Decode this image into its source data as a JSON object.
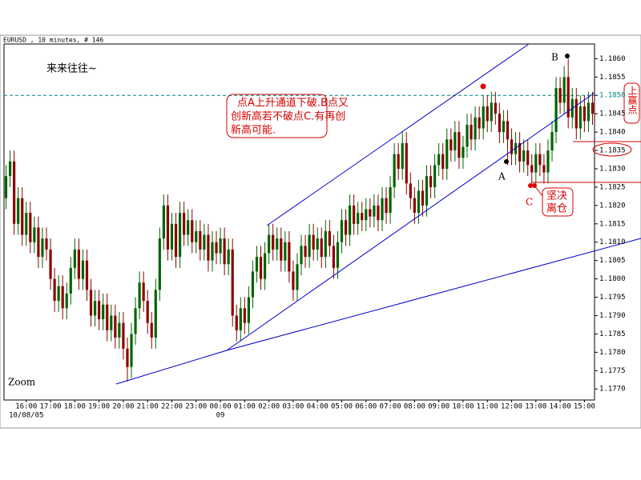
{
  "header": "EURUSD , 10 minutes, # 146",
  "chart_data": {
    "type": "candlestick",
    "title": "来来往往~",
    "up_color": "#006400",
    "down_color": "#8b0000",
    "current_price": 1.185,
    "open": [
      1.1822,
      1.1828,
      1.1832,
      1.1815,
      1.1822,
      1.1812,
      1.1818,
      1.181,
      1.1814,
      1.1806,
      1.1811,
      1.1808,
      1.18,
      1.1794,
      1.1798,
      1.1792,
      1.1796,
      1.1803,
      1.1808,
      1.18,
      1.1805,
      1.1797,
      1.179,
      1.1794,
      1.1789,
      1.1793,
      1.1786,
      1.179,
      1.1784,
      1.1788,
      1.1781,
      1.1776,
      1.1785,
      1.1792,
      1.1799,
      1.1794,
      1.1788,
      1.1784,
      1.1797,
      1.1811,
      1.182,
      1.1808,
      1.1815,
      1.1806,
      1.1818,
      1.1812,
      1.1816,
      1.181,
      1.1813,
      1.1808,
      1.1812,
      1.1805,
      1.181,
      1.1807,
      1.1811,
      1.1804,
      1.1808,
      1.179,
      1.1786,
      1.1792,
      1.1788,
      1.1795,
      1.1802,
      1.1806,
      1.18,
      1.1807,
      1.1812,
      1.1808,
      1.1811,
      1.1805,
      1.181,
      1.1802,
      1.1797,
      1.1804,
      1.1809,
      1.1806,
      1.1812,
      1.1808,
      1.1811,
      1.1806,
      1.1813,
      1.1809,
      1.1803,
      1.181,
      1.1816,
      1.1812,
      1.182,
      1.1815,
      1.1818,
      1.1816,
      1.1819,
      1.1817,
      1.182,
      1.1816,
      1.1822,
      1.1818,
      1.1825,
      1.1834,
      1.183,
      1.1837,
      1.1826,
      1.1822,
      1.1818,
      1.1824,
      1.182,
      1.1828,
      1.1825,
      1.1831,
      1.1834,
      1.183,
      1.1838,
      1.1835,
      1.184,
      1.1833,
      1.1836,
      1.1842,
      1.1838,
      1.1844,
      1.1841,
      1.1847,
      1.1843,
      1.1848,
      1.1845,
      1.184,
      1.1843,
      1.1838,
      1.1834,
      1.1837,
      1.1832,
      1.1835,
      1.1831,
      1.1829,
      1.1834,
      1.1831,
      1.1829,
      1.1835,
      1.184,
      1.1852,
      1.1848,
      1.1855,
      1.1844,
      1.1849,
      1.1841,
      1.1847,
      1.1843,
      1.1848
    ],
    "high": [
      1.1831,
      1.1835,
      1.1835,
      1.1825,
      1.1825,
      1.1821,
      1.1821,
      1.1817,
      1.1817,
      1.1814,
      1.1814,
      1.1811,
      1.1803,
      1.1801,
      1.1801,
      1.1799,
      1.1806,
      1.1811,
      1.1811,
      1.1808,
      1.1808,
      1.18,
      1.1797,
      1.1797,
      1.1796,
      1.1796,
      1.1793,
      1.1793,
      1.1791,
      1.1791,
      1.1784,
      1.1788,
      1.1795,
      1.1802,
      1.1802,
      1.1797,
      1.1791,
      1.18,
      1.1814,
      1.1823,
      1.1823,
      1.1818,
      1.1818,
      1.1821,
      1.1821,
      1.1819,
      1.1819,
      1.1816,
      1.1816,
      1.1815,
      1.1815,
      1.1813,
      1.1813,
      1.1814,
      1.1814,
      1.1811,
      1.1811,
      1.1793,
      1.1795,
      1.1795,
      1.1798,
      1.1805,
      1.1809,
      1.1809,
      1.181,
      1.1815,
      1.1815,
      1.1814,
      1.1814,
      1.1813,
      1.1813,
      1.1805,
      1.1807,
      1.1812,
      1.1812,
      1.1815,
      1.1815,
      1.1814,
      1.1814,
      1.1816,
      1.1816,
      1.1812,
      1.1813,
      1.1819,
      1.1819,
      1.1823,
      1.1823,
      1.1821,
      1.1821,
      1.1822,
      1.1822,
      1.1823,
      1.1823,
      1.1825,
      1.1825,
      1.1828,
      1.1837,
      1.1837,
      1.184,
      1.184,
      1.1829,
      1.1825,
      1.1827,
      1.1827,
      1.1831,
      1.1831,
      1.1834,
      1.1837,
      1.1837,
      1.1841,
      1.1841,
      1.1843,
      1.1843,
      1.1839,
      1.1845,
      1.1845,
      1.1847,
      1.1847,
      1.185,
      1.185,
      1.1851,
      1.1851,
      1.1848,
      1.1846,
      1.1846,
      1.1841,
      1.184,
      1.184,
      1.1838,
      1.1838,
      1.1834,
      1.1837,
      1.1837,
      1.1834,
      1.1838,
      1.1843,
      1.1855,
      1.1855,
      1.1858,
      1.186,
      1.1852,
      1.1852,
      1.185,
      1.185,
      1.1851,
      1.1851
    ],
    "low": [
      1.1819,
      1.1825,
      1.1812,
      1.1812,
      1.1809,
      1.1809,
      1.1807,
      1.1807,
      1.1803,
      1.1803,
      1.1805,
      1.1797,
      1.1791,
      1.1791,
      1.1789,
      1.1789,
      1.1793,
      1.18,
      1.1797,
      1.1797,
      1.1794,
      1.1787,
      1.1787,
      1.1786,
      1.1786,
      1.1783,
      1.1783,
      1.1781,
      1.1781,
      1.1778,
      1.1772,
      1.1773,
      1.1782,
      1.1789,
      1.1791,
      1.1785,
      1.1781,
      1.1781,
      1.1794,
      1.1808,
      1.1805,
      1.1805,
      1.1803,
      1.1803,
      1.1809,
      1.1809,
      1.1807,
      1.1807,
      1.1805,
      1.1805,
      1.1802,
      1.1802,
      1.1804,
      1.1804,
      1.1801,
      1.1801,
      1.1787,
      1.1783,
      1.1783,
      1.1785,
      1.1785,
      1.1792,
      1.1799,
      1.1797,
      1.1797,
      1.1804,
      1.1805,
      1.1805,
      1.1802,
      1.1802,
      1.1799,
      1.1794,
      1.1794,
      1.1801,
      1.1803,
      1.1803,
      1.1805,
      1.1805,
      1.1803,
      1.1803,
      1.1806,
      1.18,
      1.18,
      1.1807,
      1.1809,
      1.1809,
      1.1812,
      1.1812,
      1.1813,
      1.1813,
      1.1814,
      1.1814,
      1.1813,
      1.1813,
      1.1815,
      1.1815,
      1.1822,
      1.1827,
      1.1827,
      1.1823,
      1.1819,
      1.1815,
      1.1815,
      1.1817,
      1.1817,
      1.1822,
      1.1822,
      1.1828,
      1.1827,
      1.1827,
      1.1832,
      1.1832,
      1.183,
      1.183,
      1.1833,
      1.1835,
      1.1835,
      1.1838,
      1.1838,
      1.184,
      1.184,
      1.1842,
      1.1837,
      1.1837,
      1.1831,
      1.1831,
      1.1831,
      1.1829,
      1.1829,
      1.1828,
      1.1826,
      1.1826,
      1.1828,
      1.1826,
      1.1826,
      1.1832,
      1.1837,
      1.1845,
      1.1845,
      1.1841,
      1.1841,
      1.1838,
      1.1838,
      1.184,
      1.184,
      1.1842
    ],
    "close": [
      1.1828,
      1.1832,
      1.1815,
      1.1822,
      1.1812,
      1.1818,
      1.181,
      1.1814,
      1.1806,
      1.1811,
      1.1808,
      1.18,
      1.1794,
      1.1798,
      1.1792,
      1.1796,
      1.1803,
      1.1808,
      1.18,
      1.1805,
      1.1797,
      1.179,
      1.1794,
      1.1789,
      1.1793,
      1.1786,
      1.179,
      1.1784,
      1.1788,
      1.1781,
      1.1776,
      1.1785,
      1.1792,
      1.1799,
      1.1794,
      1.1788,
      1.1784,
      1.1797,
      1.1811,
      1.182,
      1.1808,
      1.1815,
      1.1806,
      1.1818,
      1.1812,
      1.1816,
      1.181,
      1.1813,
      1.1808,
      1.1812,
      1.1805,
      1.181,
      1.1807,
      1.1811,
      1.1804,
      1.1808,
      1.179,
      1.1786,
      1.1792,
      1.1788,
      1.1795,
      1.1802,
      1.1806,
      1.18,
      1.1807,
      1.1812,
      1.1808,
      1.1811,
      1.1805,
      1.181,
      1.1802,
      1.1797,
      1.1804,
      1.1809,
      1.1806,
      1.1812,
      1.1808,
      1.1811,
      1.1806,
      1.1813,
      1.1809,
      1.1803,
      1.181,
      1.1816,
      1.1812,
      1.182,
      1.1815,
      1.1818,
      1.1816,
      1.1819,
      1.1817,
      1.182,
      1.1816,
      1.1822,
      1.1818,
      1.1825,
      1.1834,
      1.183,
      1.1837,
      1.1826,
      1.1822,
      1.1818,
      1.1824,
      1.182,
      1.1828,
      1.1825,
      1.1831,
      1.1834,
      1.183,
      1.1838,
      1.1835,
      1.184,
      1.1833,
      1.1836,
      1.1842,
      1.1838,
      1.1844,
      1.1841,
      1.1847,
      1.1843,
      1.1848,
      1.1845,
      1.184,
      1.1843,
      1.1838,
      1.1834,
      1.1837,
      1.1832,
      1.1835,
      1.1831,
      1.1829,
      1.1834,
      1.1831,
      1.1829,
      1.1835,
      1.184,
      1.1852,
      1.1848,
      1.1855,
      1.1844,
      1.1849,
      1.1841,
      1.1847,
      1.1843,
      1.1848,
      1.1845
    ],
    "xlim": [
      -0.5,
      145.5
    ],
    "xticks": [
      {
        "value": 5,
        "label": "16:00"
      },
      {
        "value": 11,
        "label": "17:00"
      },
      {
        "value": 17,
        "label": "18:00"
      },
      {
        "value": 23,
        "label": "19:00"
      },
      {
        "value": 29,
        "label": "20:00"
      },
      {
        "value": 35,
        "label": "21:00"
      },
      {
        "value": 41,
        "label": "22:00"
      },
      {
        "value": 47,
        "label": "23:00"
      },
      {
        "value": 53,
        "label": "00:00"
      },
      {
        "value": 59,
        "label": "01:00"
      },
      {
        "value": 65,
        "label": "02:00"
      },
      {
        "value": 71,
        "label": "03:00"
      },
      {
        "value": 77,
        "label": "04:00"
      },
      {
        "value": 83,
        "label": "05:00"
      },
      {
        "value": 89,
        "label": "06:00"
      },
      {
        "value": 95,
        "label": "07:00"
      },
      {
        "value": 101,
        "label": "08:00"
      },
      {
        "value": 107,
        "label": "09:00"
      },
      {
        "value": 113,
        "label": "10:00"
      },
      {
        "value": 119,
        "label": "11:00"
      },
      {
        "value": 125,
        "label": "12:00"
      },
      {
        "value": 131,
        "label": "13:00"
      },
      {
        "value": 137,
        "label": "14:00"
      },
      {
        "value": 143,
        "label": "15:00"
      }
    ],
    "date_labels": [
      {
        "value": 5,
        "label": "10/08/05"
      },
      {
        "value": 53,
        "label": "09"
      }
    ],
    "ylim": [
      1.1767,
      1.1864
    ],
    "yticks": [
      {
        "value": 1.177,
        "label": "1.1770"
      },
      1.1775,
      {
        "value": 1.178,
        "label": "1.1780"
      },
      1.1785,
      {
        "value": 1.179,
        "label": "1.1790"
      },
      1.1795,
      {
        "value": 1.18,
        "label": "1.1800"
      },
      1.1805,
      {
        "value": 1.181,
        "label": "1.1810"
      },
      1.1815,
      {
        "value": 1.182,
        "label": "1.1820"
      },
      1.1825,
      {
        "value": 1.183,
        "label": "1.1830"
      },
      1.1835,
      {
        "value": 1.184,
        "label": "1.1840"
      },
      1.1845,
      {
        "value": 1.185,
        "label": "1.1850"
      },
      1.1855,
      {
        "value": 1.186,
        "label": "1.1860"
      }
    ],
    "annotations": {
      "note": [
        "点A上升通道下破.B点又",
        "创新高若不破点C.有再创",
        "新高可能."
      ],
      "take_profit": "上赢点",
      "exit": [
        "坚决",
        "离仓"
      ],
      "points": [
        "A",
        "B",
        "C"
      ]
    },
    "zoom": "Zoom"
  }
}
